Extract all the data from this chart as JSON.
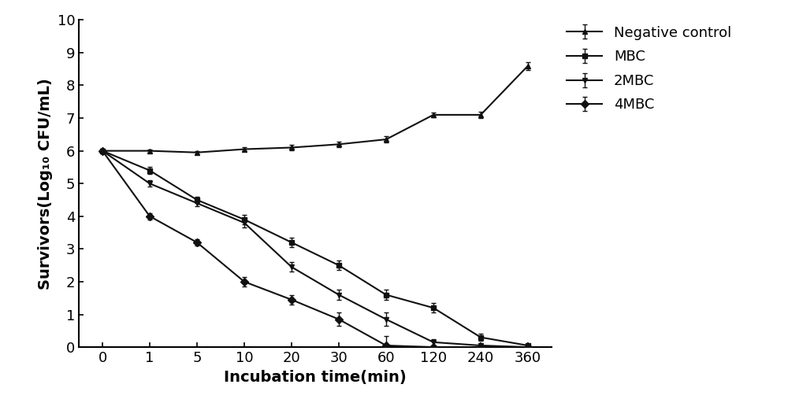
{
  "x_ticks": [
    0,
    1,
    5,
    10,
    20,
    30,
    60,
    120,
    240,
    360
  ],
  "neg_control": {
    "label": "Negative control",
    "y": [
      6.0,
      6.0,
      5.95,
      6.05,
      6.1,
      6.2,
      6.35,
      7.1,
      7.1,
      8.6
    ],
    "yerr": [
      0.05,
      0.05,
      0.05,
      0.05,
      0.08,
      0.08,
      0.1,
      0.08,
      0.1,
      0.12
    ],
    "marker": "^",
    "color": "#111111"
  },
  "mbc": {
    "label": "MBC",
    "y": [
      6.0,
      5.4,
      4.5,
      3.9,
      3.2,
      2.5,
      1.6,
      1.2,
      0.3,
      0.05
    ],
    "yerr": [
      0.05,
      0.1,
      0.1,
      0.15,
      0.15,
      0.15,
      0.15,
      0.15,
      0.1,
      0.05
    ],
    "marker": "s",
    "color": "#111111"
  },
  "mbc2": {
    "label": "2MBC",
    "y": [
      6.0,
      5.0,
      4.4,
      3.8,
      2.45,
      1.6,
      0.85,
      0.15,
      0.05,
      0.0
    ],
    "yerr": [
      0.05,
      0.1,
      0.1,
      0.15,
      0.15,
      0.15,
      0.2,
      0.1,
      0.05,
      0.0
    ],
    "marker": "v",
    "color": "#111111"
  },
  "mbc4": {
    "label": "4MBC",
    "y": [
      6.0,
      4.0,
      3.2,
      2.0,
      1.45,
      0.85,
      0.05,
      0.0,
      0.0,
      0.0
    ],
    "yerr": [
      0.05,
      0.1,
      0.1,
      0.15,
      0.15,
      0.2,
      0.3,
      0.0,
      0.0,
      0.0
    ],
    "marker": "D",
    "color": "#111111"
  },
  "ylim": [
    0,
    10
  ],
  "yticks": [
    0,
    1,
    2,
    3,
    4,
    5,
    6,
    7,
    8,
    9,
    10
  ],
  "xlabel": "Incubation time(min)",
  "ylabel": "Survivors(Log₁₀ CFU/mL)",
  "background_color": "#ffffff",
  "markersize": 5,
  "linewidth": 1.5,
  "capsize": 2.5,
  "elinewidth": 1.0,
  "tick_fontsize": 13,
  "label_fontsize": 14,
  "legend_fontsize": 13
}
